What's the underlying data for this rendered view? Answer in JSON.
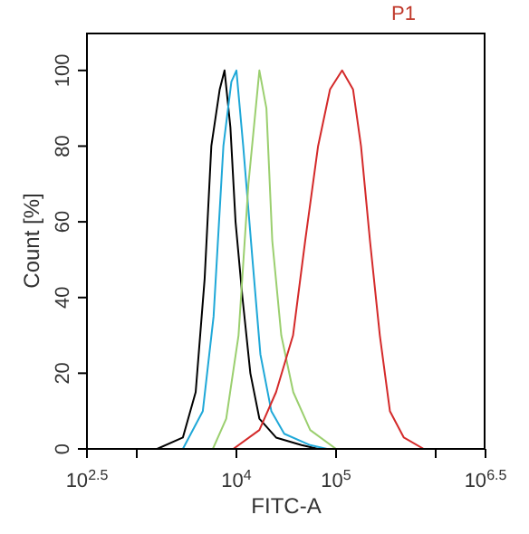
{
  "chart_data": {
    "type": "line",
    "xlabel": "FITC-A",
    "ylabel": "Count [%]",
    "log": "x",
    "xlim": [
      316.23,
      3162278
    ],
    "xticks": [
      {
        "value": 316.23,
        "label": "10$^{2.5}$"
      },
      {
        "value": 1000,
        "label": null
      },
      {
        "value": 10000,
        "label": "10$^{4}$"
      },
      {
        "value": 100000,
        "label": "10$^{5}$"
      },
      {
        "value": 1000000,
        "label": null
      },
      {
        "value": 3162278,
        "label": "10$^{6.5}$"
      }
    ],
    "ylim": [
      0,
      110
    ],
    "yticks": [
      0,
      20,
      40,
      60,
      80,
      100
    ],
    "marker": "none",
    "annotations": [
      "P1"
    ],
    "series": [
      {
        "color": "#000000",
        "x": [
          1600,
          2900,
          3900,
          4800,
          5600,
          6800,
          7600,
          8700,
          9800,
          11500,
          13800,
          17000,
          25000,
          45000,
          66000
        ],
        "values": [
          0,
          3,
          15,
          45,
          80,
          95,
          100,
          85,
          60,
          40,
          20,
          8,
          3,
          1,
          0
        ]
      },
      {
        "color": "#1fa8d8",
        "x": [
          2900,
          4600,
          5900,
          7400,
          8900,
          10000,
          11700,
          14500,
          17400,
          22400,
          30200,
          55000,
          81000
        ],
        "values": [
          0,
          10,
          35,
          80,
          97,
          100,
          80,
          50,
          25,
          10,
          4,
          1,
          0
        ]
      },
      {
        "color": "#9bcf6f",
        "x": [
          5800,
          7900,
          10500,
          13200,
          17000,
          20000,
          22900,
          28200,
          37200,
          55000,
          100000
        ],
        "values": [
          0,
          8,
          30,
          70,
          100,
          90,
          55,
          30,
          15,
          5,
          0
        ]
      },
      {
        "color": "#d42a2a",
        "x": [
          9300,
          17000,
          25000,
          37000,
          49000,
          66000,
          87000,
          115000,
          148000,
          178000,
          219000,
          275000,
          347000,
          479000,
          759000
        ],
        "values": [
          0,
          5,
          15,
          30,
          55,
          80,
          95,
          100,
          95,
          80,
          55,
          30,
          10,
          3,
          0
        ]
      }
    ]
  }
}
